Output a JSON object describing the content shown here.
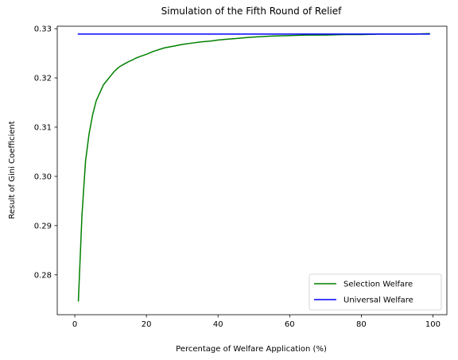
{
  "chart_data": {
    "type": "line",
    "title": "Simulation of the Fifth Round of Relief",
    "xlabel": "Percentage of Welfare Application (%)",
    "ylabel": "Result of Gini Coefficient",
    "xlim": [
      -4.9,
      103.9
    ],
    "ylim": [
      0.2719,
      0.3305
    ],
    "xticks": [
      0,
      20,
      40,
      60,
      80,
      100
    ],
    "xtick_labels": [
      "0",
      "20",
      "40",
      "60",
      "80",
      "100"
    ],
    "yticks": [
      0.28,
      0.29,
      0.3,
      0.31,
      0.32,
      0.33
    ],
    "ytick_labels": [
      "0.28",
      "0.29",
      "0.30",
      "0.31",
      "0.32",
      "0.33"
    ],
    "grid": false,
    "legend_position": "lower-right",
    "series": [
      {
        "name": "Selection Welfare",
        "color": "#008000",
        "x": [
          1,
          2,
          3,
          4,
          5,
          6,
          7,
          8,
          9,
          10,
          11,
          12,
          13,
          14,
          15,
          16,
          17,
          18,
          20,
          22,
          25,
          28,
          30,
          33,
          35,
          38,
          40,
          43,
          45,
          48,
          50,
          55,
          60,
          65,
          70,
          75,
          80,
          85,
          90,
          95,
          99
        ],
        "y": [
          0.2747,
          0.2921,
          0.3031,
          0.3087,
          0.3126,
          0.3154,
          0.317,
          0.3186,
          0.3195,
          0.3204,
          0.3213,
          0.322,
          0.3225,
          0.3229,
          0.3233,
          0.3236,
          0.324,
          0.3243,
          0.3248,
          0.3254,
          0.3261,
          0.3265,
          0.3268,
          0.3271,
          0.3273,
          0.3275,
          0.3277,
          0.3279,
          0.328,
          0.3282,
          0.3283,
          0.3285,
          0.3286,
          0.3287,
          0.3287,
          0.3288,
          0.3288,
          0.3289,
          0.3289,
          0.3289,
          0.329
        ]
      },
      {
        "name": "Universal Welfare",
        "color": "#0000ff",
        "x": [
          1,
          99
        ],
        "y": [
          0.3289,
          0.3289
        ]
      }
    ]
  }
}
